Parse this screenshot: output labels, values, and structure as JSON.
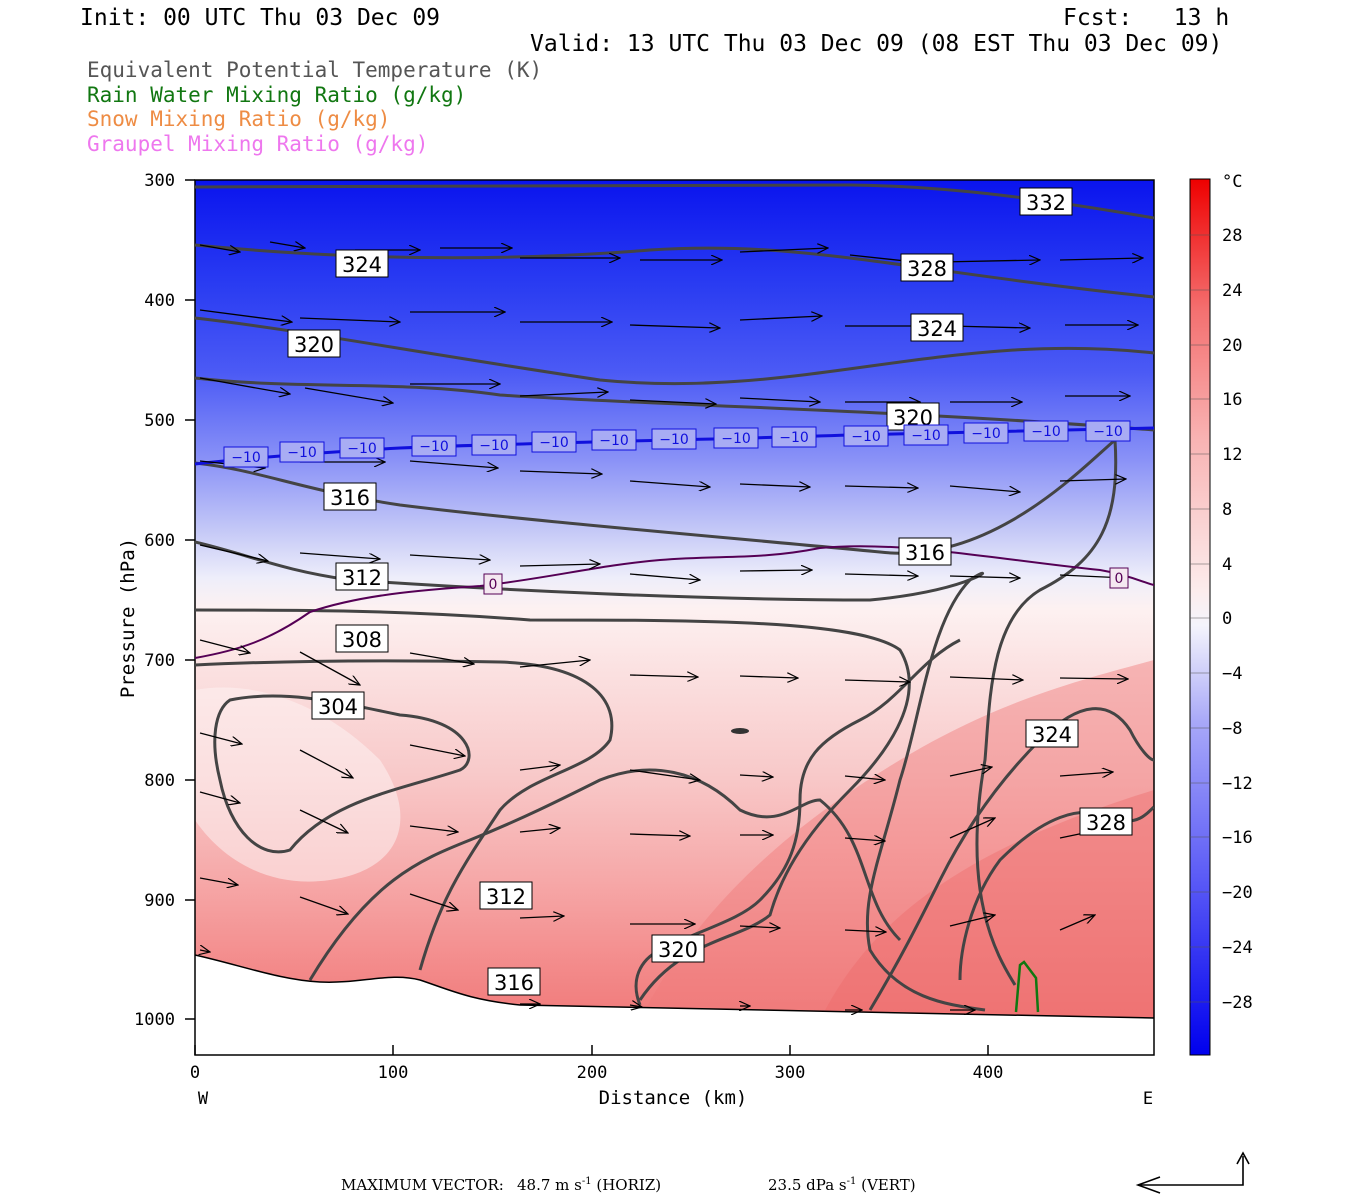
{
  "header": {
    "init": "Init: 00 UTC Thu 03 Dec 09",
    "fcst": "Fcst:   13 h",
    "valid": "Valid: 13 UTC Thu 03 Dec 09 (08 EST Thu 03 Dec 09)"
  },
  "legend": [
    {
      "label": "Equivalent Potential Temperature (K)",
      "color": "#555555"
    },
    {
      "label": "Rain Water Mixing Ratio (g/kg)",
      "color": "#117711"
    },
    {
      "label": "Snow Mixing Ratio (g/kg)",
      "color": "#ee8c44"
    },
    {
      "label": "Graupel Mixing Ratio (g/kg)",
      "color": "#ee77ee"
    }
  ],
  "chart_data": {
    "type": "cross-section",
    "xlabel": "Distance (km)",
    "ylabel": "Pressure (hPa)",
    "xlim": [
      0,
      485
    ],
    "ylim": [
      1030,
      300
    ],
    "x_ticks": [
      "0",
      "100",
      "200",
      "300",
      "400"
    ],
    "y_ticks": [
      "300",
      "400",
      "500",
      "600",
      "700",
      "800",
      "900",
      "1000"
    ],
    "x_end_labels": {
      "left": "W",
      "right": "E"
    },
    "colorbar": {
      "unit": "°C",
      "labels": [
        "28",
        "24",
        "20",
        "16",
        "12",
        "8",
        "4",
        "0",
        "−4",
        "−8",
        "−12",
        "−16",
        "−20",
        "−24",
        "−28"
      ]
    },
    "theta_e_contour_labels": [
      "332",
      "324",
      "328",
      "324",
      "320",
      "320",
      "316",
      "316",
      "312",
      "308",
      "304",
      "324",
      "328",
      "312",
      "320",
      "316"
    ],
    "temperature_contour_labels": [
      "−10",
      "−10",
      "−10",
      "−10",
      "−10",
      "−10",
      "−10",
      "−10",
      "−10",
      "−10",
      "−10",
      "−10",
      "−10",
      "−10",
      "−10",
      "0",
      "0"
    ],
    "footer": {
      "label": "MAXIMUM VECTOR:",
      "horiz": "48.7 m s",
      "horiz_sup": "-1",
      "horiz_tag": " (HORIZ)",
      "vert": "23.5 dPa s",
      "vert_sup": "-1",
      "vert_tag": " (VERT)"
    }
  }
}
